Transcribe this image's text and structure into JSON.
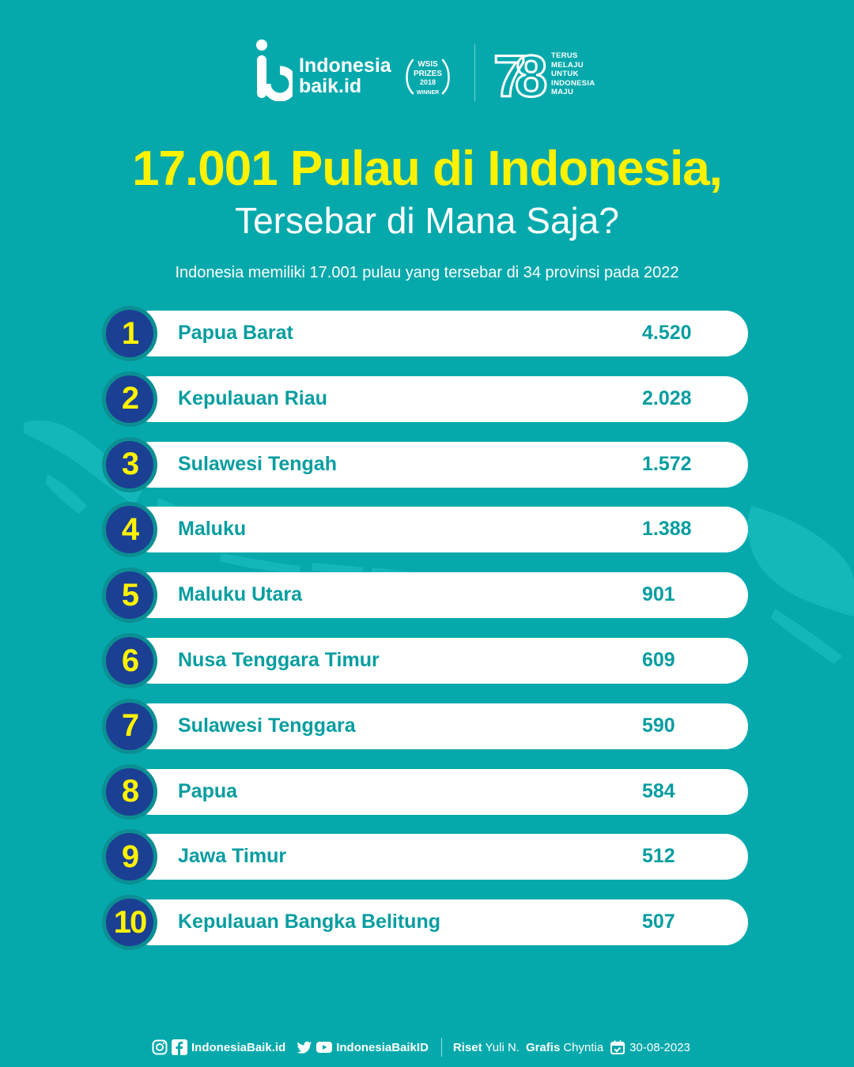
{
  "header": {
    "brand_line1": "Indonesia",
    "brand_line2": "baik.id",
    "wsis_lines": [
      "WSIS",
      "PRIZES",
      "2018",
      "WINNER"
    ],
    "anniversary_number": "78",
    "anniversary_lines": [
      "TERUS",
      "MELAJU",
      "UNTUK",
      "INDONESIA",
      "MAJU"
    ]
  },
  "chart_data": {
    "type": "table",
    "title": "17.001 Pulau di Indonesia,",
    "subtitle": "Tersebar di Mana Saja?",
    "description": "Indonesia memiliki 17.001 pulau yang tersebar di 34 provinsi pada 2022",
    "rows": [
      {
        "rank": "1",
        "province": "Papua Barat",
        "value": "4.520"
      },
      {
        "rank": "2",
        "province": "Kepulauan Riau",
        "value": "2.028"
      },
      {
        "rank": "3",
        "province": "Sulawesi Tengah",
        "value": "1.572"
      },
      {
        "rank": "4",
        "province": "Maluku",
        "value": "1.388"
      },
      {
        "rank": "5",
        "province": "Maluku Utara",
        "value": "901"
      },
      {
        "rank": "6",
        "province": "Nusa Tenggara Timur",
        "value": "609"
      },
      {
        "rank": "7",
        "province": "Sulawesi Tenggara",
        "value": "590"
      },
      {
        "rank": "8",
        "province": "Papua",
        "value": "584"
      },
      {
        "rank": "9",
        "province": "Jawa Timur",
        "value": "512"
      },
      {
        "rank": "10",
        "province": "Kepulauan Bangka Belitung",
        "value": "507"
      }
    ]
  },
  "footer": {
    "handle_1": "IndonesiaBaik.id",
    "handle_2": "IndonesiaBaikID",
    "riset_label": "Riset",
    "riset_name": "Yuli N.",
    "grafis_label": "Grafis",
    "grafis_name": "Chyntia",
    "date": "30-08-2023"
  },
  "colors": {
    "background": "#05a9ac",
    "title": "#fff200",
    "badge": "#1b3f92",
    "row_text": "#069da0"
  },
  "icons": [
    "instagram-icon",
    "facebook-icon",
    "twitter-icon",
    "youtube-icon",
    "calendar-icon"
  ]
}
